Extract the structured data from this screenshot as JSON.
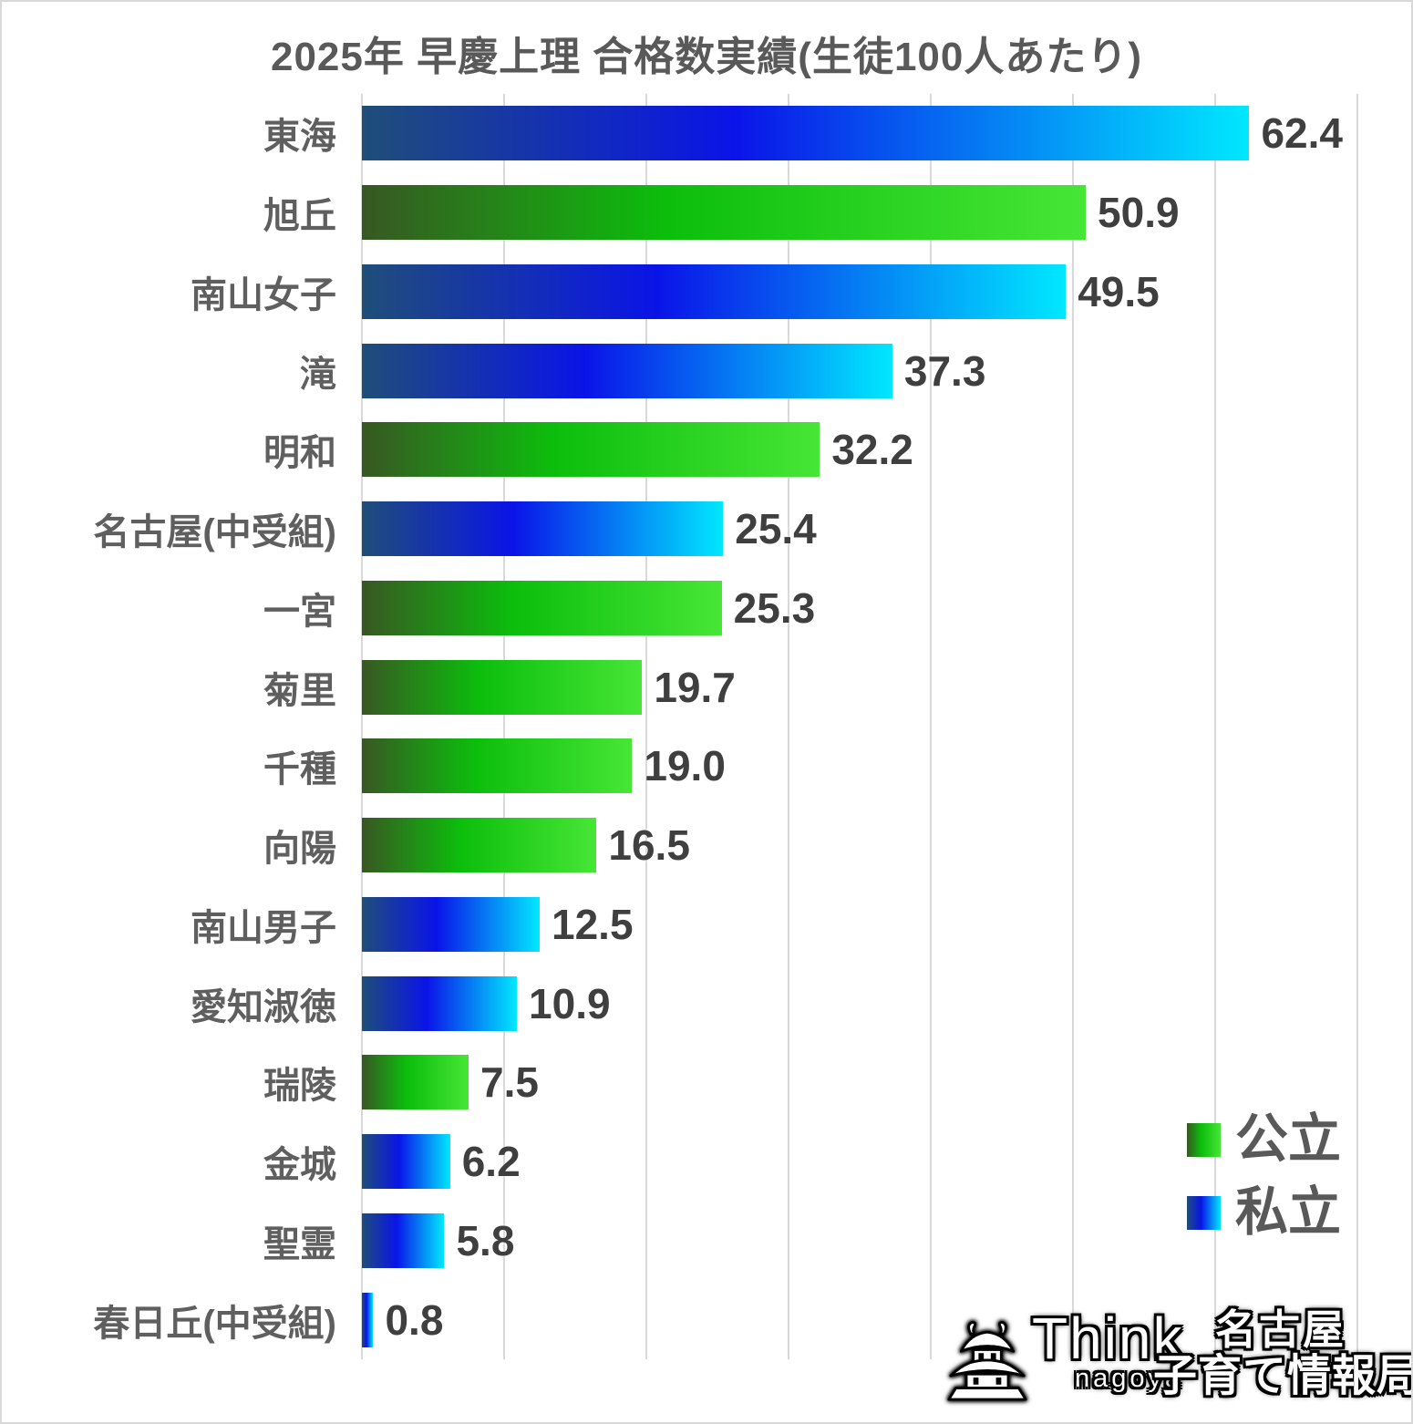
{
  "title": "2025年 早慶上理 合格数実績(生徒100人あたり)",
  "legend": {
    "public_label": "公立",
    "private_label": "私立"
  },
  "colors": {
    "public_gradient": [
      "#385723",
      "#0CBE0C",
      "#47E636"
    ],
    "private_gradient": [
      "#1F4E79",
      "#0A14E8",
      "#00E8FF"
    ],
    "title_text": "#595959",
    "category_text": "#5F5F5F",
    "value_text": "#3F3F3F",
    "gridline": "#D9D9D9"
  },
  "chart_data": {
    "type": "bar",
    "orientation": "horizontal",
    "title": "2025年 早慶上理 合格数実績(生徒100人あたり)",
    "xlabel": "",
    "ylabel": "",
    "x_axis": {
      "min": 0,
      "max": 74,
      "gridline_step": 10,
      "gridlines_visible": true,
      "tick_labels_visible": false
    },
    "legend_position": "bottom-right",
    "bars": [
      {
        "label": "東海",
        "value": 62.4,
        "value_label": "62.4",
        "group": "私立"
      },
      {
        "label": "旭丘",
        "value": 50.9,
        "value_label": "50.9",
        "group": "公立"
      },
      {
        "label": "南山女子",
        "value": 49.5,
        "value_label": "49.5",
        "group": "私立"
      },
      {
        "label": "滝",
        "value": 37.3,
        "value_label": "37.3",
        "group": "私立"
      },
      {
        "label": "明和",
        "value": 32.2,
        "value_label": "32.2",
        "group": "公立"
      },
      {
        "label": "名古屋(中受組)",
        "value": 25.4,
        "value_label": "25.4",
        "group": "私立"
      },
      {
        "label": "一宮",
        "value": 25.3,
        "value_label": "25.3",
        "group": "公立"
      },
      {
        "label": "菊里",
        "value": 19.7,
        "value_label": "19.7",
        "group": "公立"
      },
      {
        "label": "千種",
        "value": 19.0,
        "value_label": "19.0",
        "group": "公立"
      },
      {
        "label": "向陽",
        "value": 16.5,
        "value_label": "16.5",
        "group": "公立"
      },
      {
        "label": "南山男子",
        "value": 12.5,
        "value_label": "12.5",
        "group": "私立"
      },
      {
        "label": "愛知淑徳",
        "value": 10.9,
        "value_label": "10.9",
        "group": "私立"
      },
      {
        "label": "瑞陵",
        "value": 7.5,
        "value_label": "7.5",
        "group": "公立"
      },
      {
        "label": "金城",
        "value": 6.2,
        "value_label": "6.2",
        "group": "私立"
      },
      {
        "label": "聖霊",
        "value": 5.8,
        "value_label": "5.8",
        "group": "私立"
      },
      {
        "label": "春日丘(中受組)",
        "value": 0.8,
        "value_label": "0.8",
        "group": "私立"
      }
    ]
  },
  "logo": {
    "brand": "Think",
    "brand_sub": "nagoya",
    "jp_line1": "名古屋",
    "jp_line2": "子育て情報局",
    "icon": "castle-icon"
  }
}
